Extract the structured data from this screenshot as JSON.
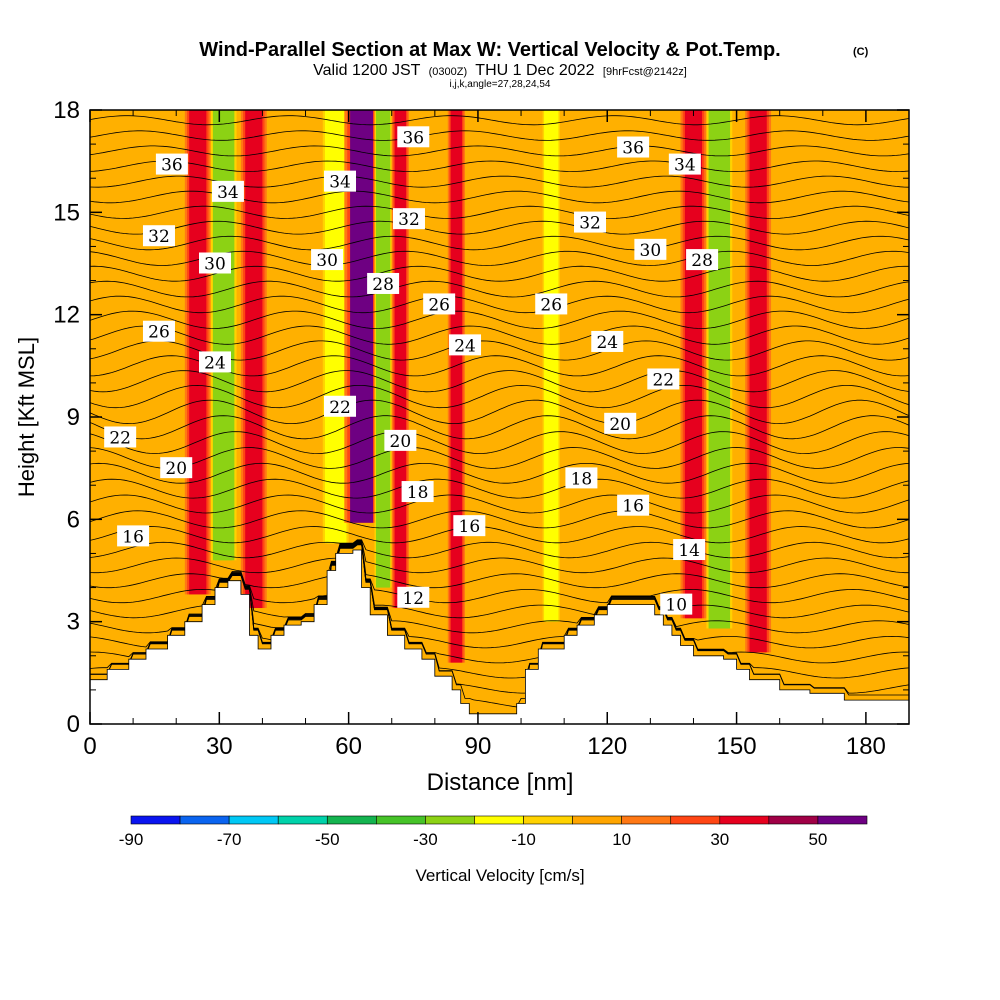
{
  "chart_data": {
    "type": "heatmap",
    "title": "Wind-Parallel Section at Max W: Vertical Velocity & Pot.Temp.",
    "title_mark": "(C)",
    "subtitle_parts": {
      "valid": "Valid 1200 JST",
      "utc": "(0300Z)",
      "date": "THU 1 Dec 2022",
      "fcst": "[9hrFcst@2142z]"
    },
    "subtitle2": "i,j,k,angle=27,28,24,54",
    "xlabel": "Distance [nm]",
    "ylabel": "Height [Kft MSL]",
    "xlim": [
      0,
      190
    ],
    "ylim": [
      0,
      18
    ],
    "xticks": [
      0,
      30,
      60,
      90,
      120,
      150,
      180
    ],
    "yticks": [
      0,
      3,
      6,
      9,
      12,
      15,
      18
    ],
    "colorbar": {
      "label": "Vertical Velocity [cm/s]",
      "range": [
        -90,
        60
      ],
      "step": 10,
      "tick_labels": [
        "-90",
        "-70",
        "-50",
        "-30",
        "-10",
        "10",
        "30",
        "50"
      ],
      "tick_values": [
        -90,
        -70,
        -50,
        -30,
        -10,
        10,
        30,
        50
      ],
      "colors": [
        "#0a14f0",
        "#0a64f0",
        "#00c8f5",
        "#00d2aa",
        "#14b450",
        "#46c328",
        "#8cd214",
        "#ffff00",
        "#ffd200",
        "#ffa500",
        "#ff7814",
        "#ff4614",
        "#e6001e",
        "#a00046",
        "#6e0082"
      ]
    },
    "terrain_height_kft": [
      {
        "x": 0,
        "h": 1.3
      },
      {
        "x": 4,
        "h": 1.6
      },
      {
        "x": 9,
        "h": 1.9
      },
      {
        "x": 13,
        "h": 2.2
      },
      {
        "x": 18,
        "h": 2.6
      },
      {
        "x": 22,
        "h": 3.0
      },
      {
        "x": 26,
        "h": 3.5
      },
      {
        "x": 29,
        "h": 4.0
      },
      {
        "x": 32,
        "h": 4.2
      },
      {
        "x": 35,
        "h": 3.8
      },
      {
        "x": 37,
        "h": 2.6
      },
      {
        "x": 39,
        "h": 2.2
      },
      {
        "x": 42,
        "h": 2.6
      },
      {
        "x": 45,
        "h": 2.9
      },
      {
        "x": 49,
        "h": 3.0
      },
      {
        "x": 52,
        "h": 3.5
      },
      {
        "x": 55,
        "h": 4.5
      },
      {
        "x": 57,
        "h": 5.0
      },
      {
        "x": 61,
        "h": 5.1
      },
      {
        "x": 63,
        "h": 4.0
      },
      {
        "x": 65,
        "h": 3.2
      },
      {
        "x": 69,
        "h": 2.6
      },
      {
        "x": 73,
        "h": 2.2
      },
      {
        "x": 77,
        "h": 1.9
      },
      {
        "x": 80,
        "h": 1.4
      },
      {
        "x": 84,
        "h": 1.0
      },
      {
        "x": 86,
        "h": 0.6
      },
      {
        "x": 88,
        "h": 0.3
      },
      {
        "x": 95,
        "h": 0.3
      },
      {
        "x": 99,
        "h": 0.6
      },
      {
        "x": 101,
        "h": 1.6
      },
      {
        "x": 104,
        "h": 2.2
      },
      {
        "x": 110,
        "h": 2.6
      },
      {
        "x": 113,
        "h": 2.9
      },
      {
        "x": 117,
        "h": 3.2
      },
      {
        "x": 120,
        "h": 3.5
      },
      {
        "x": 128,
        "h": 3.5
      },
      {
        "x": 131,
        "h": 3.2
      },
      {
        "x": 133,
        "h": 2.9
      },
      {
        "x": 135,
        "h": 2.6
      },
      {
        "x": 137,
        "h": 2.3
      },
      {
        "x": 140,
        "h": 2.0
      },
      {
        "x": 147,
        "h": 1.9
      },
      {
        "x": 150,
        "h": 1.6
      },
      {
        "x": 153,
        "h": 1.3
      },
      {
        "x": 160,
        "h": 1.0
      },
      {
        "x": 167,
        "h": 0.9
      },
      {
        "x": 175,
        "h": 0.7
      },
      {
        "x": 186,
        "h": 0.7
      },
      {
        "x": 190,
        "h": 1.0
      }
    ],
    "velocity_bands": [
      {
        "x": 25,
        "width": 3,
        "value": 30
      },
      {
        "x": 31,
        "width": 3,
        "value": -30
      },
      {
        "x": 38,
        "width": 3,
        "value": 30
      },
      {
        "x": 57,
        "width": 3,
        "value": -20
      },
      {
        "x": 63,
        "width": 4,
        "value": 50
      },
      {
        "x": 68,
        "width": 2,
        "value": -30
      },
      {
        "x": 72,
        "width": 2,
        "value": 30
      },
      {
        "x": 85,
        "width": 2,
        "value": 30
      },
      {
        "x": 107,
        "width": 2,
        "value": -20
      },
      {
        "x": 140,
        "width": 3,
        "value": 30
      },
      {
        "x": 146,
        "width": 3,
        "value": -30
      },
      {
        "x": 155,
        "width": 3,
        "value": 30
      }
    ],
    "pot_temp_contour_labels": [
      {
        "text": "36",
        "x": 19,
        "y": 16.4
      },
      {
        "text": "34",
        "x": 32,
        "y": 15.6
      },
      {
        "text": "32",
        "x": 16,
        "y": 14.3
      },
      {
        "text": "30",
        "x": 29,
        "y": 13.5
      },
      {
        "text": "26",
        "x": 16,
        "y": 11.5
      },
      {
        "text": "24",
        "x": 29,
        "y": 10.6
      },
      {
        "text": "22",
        "x": 7,
        "y": 8.4
      },
      {
        "text": "20",
        "x": 20,
        "y": 7.5
      },
      {
        "text": "16",
        "x": 10,
        "y": 5.5
      },
      {
        "text": "34",
        "x": 58,
        "y": 15.9
      },
      {
        "text": "30",
        "x": 55,
        "y": 13.6
      },
      {
        "text": "28",
        "x": 68,
        "y": 12.9
      },
      {
        "text": "22",
        "x": 58,
        "y": 9.3
      },
      {
        "text": "36",
        "x": 75,
        "y": 17.2
      },
      {
        "text": "32",
        "x": 74,
        "y": 14.8
      },
      {
        "text": "26",
        "x": 81,
        "y": 12.3
      },
      {
        "text": "24",
        "x": 87,
        "y": 11.1
      },
      {
        "text": "20",
        "x": 72,
        "y": 8.3
      },
      {
        "text": "18",
        "x": 76,
        "y": 6.8
      },
      {
        "text": "16",
        "x": 88,
        "y": 5.8
      },
      {
        "text": "12",
        "x": 75,
        "y": 3.7
      },
      {
        "text": "26",
        "x": 107,
        "y": 12.3
      },
      {
        "text": "32",
        "x": 116,
        "y": 14.7
      },
      {
        "text": "24",
        "x": 120,
        "y": 11.2
      },
      {
        "text": "18",
        "x": 114,
        "y": 7.2
      },
      {
        "text": "36",
        "x": 126,
        "y": 16.9
      },
      {
        "text": "34",
        "x": 138,
        "y": 16.4
      },
      {
        "text": "30",
        "x": 130,
        "y": 13.9
      },
      {
        "text": "28",
        "x": 142,
        "y": 13.6
      },
      {
        "text": "22",
        "x": 133,
        "y": 10.1
      },
      {
        "text": "20",
        "x": 123,
        "y": 8.8
      },
      {
        "text": "16",
        "x": 126,
        "y": 6.4
      },
      {
        "text": "14",
        "x": 139,
        "y": 5.1
      },
      {
        "text": "10",
        "x": 136,
        "y": 3.5
      }
    ]
  }
}
